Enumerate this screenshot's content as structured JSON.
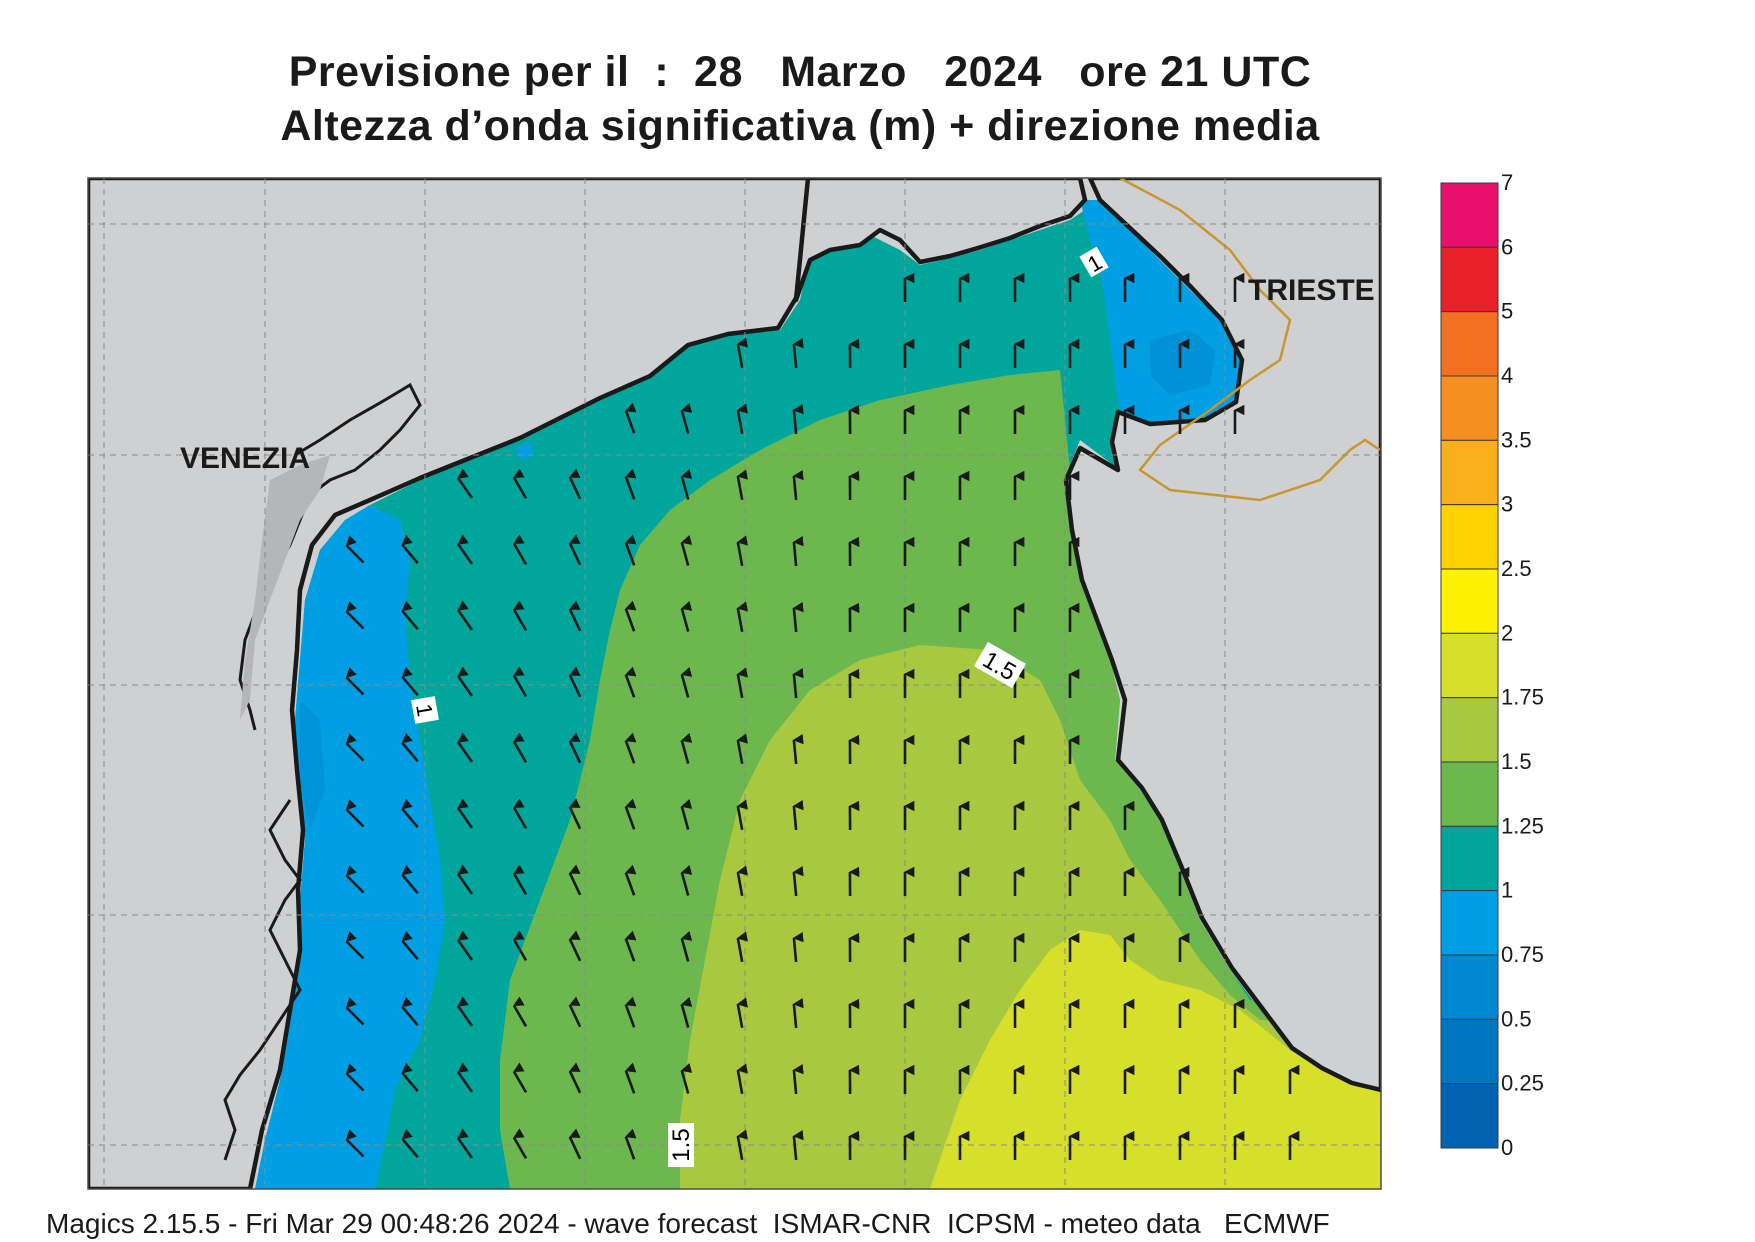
{
  "title_line1": "Previsione per il  :  28   Marzo   2024   ore 21 UTC",
  "title_line2": "Altezza d’onda significativa (m) + direzione media",
  "city_labels": {
    "venezia": "VENEZIA",
    "trieste": "TRIESTE"
  },
  "contour_labels": {
    "north": "1",
    "west": "1",
    "center": "1.5",
    "south": "1.5"
  },
  "legend": {
    "ticks": [
      "7",
      "6",
      "5",
      "4",
      "3.5",
      "3",
      "2.5",
      "2",
      "1.75",
      "1.5",
      "1.25",
      "1",
      "0.75",
      "0.5",
      "0.25",
      "0"
    ],
    "bands": [
      {
        "from": "6",
        "to": "7",
        "color": "#e8106a"
      },
      {
        "from": "5",
        "to": "6",
        "color": "#e8202a"
      },
      {
        "from": "4",
        "to": "5",
        "color": "#f07020"
      },
      {
        "from": "3.5",
        "to": "4",
        "color": "#f59020"
      },
      {
        "from": "3",
        "to": "3.5",
        "color": "#f9ae1c"
      },
      {
        "from": "2.5",
        "to": "3",
        "color": "#fdd200"
      },
      {
        "from": "2",
        "to": "2.5",
        "color": "#fff200"
      },
      {
        "from": "1.75",
        "to": "2",
        "color": "#d6e02a"
      },
      {
        "from": "1.5",
        "to": "1.75",
        "color": "#a8c840"
      },
      {
        "from": "1.25",
        "to": "1.5",
        "color": "#6cb84e"
      },
      {
        "from": "1",
        "to": "1.25",
        "color": "#00a69c"
      },
      {
        "from": "0.75",
        "to": "1",
        "color": "#009fe3"
      },
      {
        "from": "0.5",
        "to": "0.75",
        "color": "#0088d1"
      },
      {
        "from": "0.25",
        "to": "0.5",
        "color": "#0076c0"
      },
      {
        "from": "0",
        "to": "0.25",
        "color": "#0062b0"
      }
    ]
  },
  "colors": {
    "land": "#cfd0d2",
    "border": "#c8962e",
    "arrow": "#1a1a1a"
  },
  "footer": "Magics 2.15.5 - Fri Mar 29 00:48:26 2024 - wave forecast  ISMAR-CNR  ICPSM - meteo data   ECMWF"
}
